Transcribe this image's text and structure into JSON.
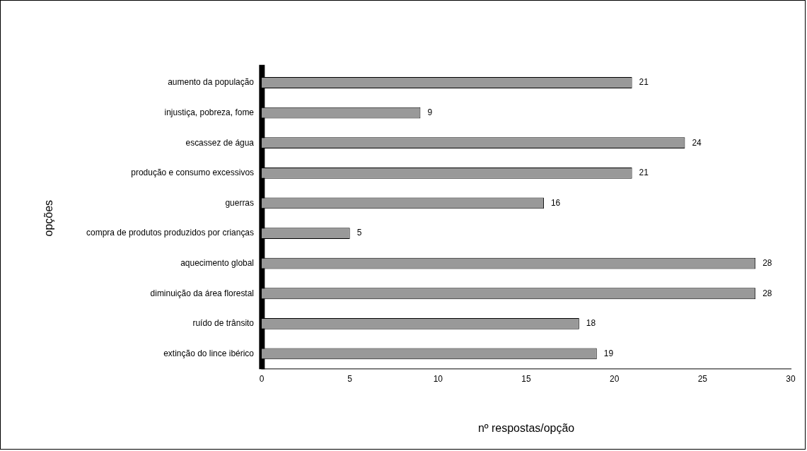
{
  "chart_data": {
    "type": "bar",
    "orientation": "horizontal",
    "xlabel": "nº respostas/opção",
    "ylabel": "opções",
    "categories": [
      "aumento da população",
      "injustiça, pobreza, fome",
      "escassez de água",
      "produção e consumo excessivos",
      "guerras",
      "compra de produtos produzidos por crianças",
      "aquecimento global",
      "diminuição da área florestal",
      "ruído de trânsito",
      "extinção do lince ibérico"
    ],
    "values": [
      21,
      9,
      24,
      21,
      16,
      5,
      28,
      28,
      18,
      19
    ],
    "color": "#999999",
    "xlim": [
      0,
      30
    ],
    "xticks": [
      0,
      5,
      10,
      15,
      20,
      25,
      30
    ],
    "grid": false,
    "legend": false,
    "data_labels": true
  }
}
